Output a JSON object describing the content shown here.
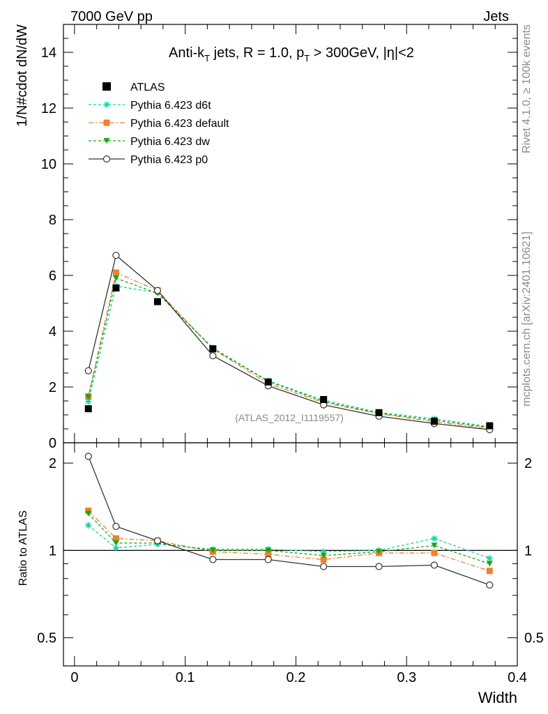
{
  "header": {
    "left": "7000 GeV pp",
    "right": "Jets"
  },
  "side_labels": {
    "rivet": "Rivet 4.1.0, ≥ 100k events",
    "mcplots": "mcplots.cern.ch [arXiv:2401.10621]"
  },
  "chart_data": {
    "type": "line",
    "title": {
      "prefix": "Anti-k",
      "sub1": "T",
      "mid": " jets, R = 1.0, p",
      "sub2": "T",
      "suffix": " > 300GeV, |η|<2"
    },
    "ylabel": "1/N#cdot dN/dW",
    "ratio_ylabel": "Ratio to ATLAS",
    "xlabel": "Width",
    "analysis_tag": "(ATLAS_2012_I1119557)",
    "xlim": [
      -0.01,
      0.4
    ],
    "ylim": [
      0,
      15
    ],
    "ratio_ylim": [
      0.4,
      2.35
    ],
    "x_ticks": [
      "0",
      "0.1",
      "0.2",
      "0.3",
      "0.4"
    ],
    "y_ticks": [
      "0",
      "2",
      "4",
      "6",
      "8",
      "10",
      "12",
      "14"
    ],
    "ratio_ticks": [
      "0.5",
      "1",
      "2"
    ],
    "x": [
      0.0125,
      0.0375,
      0.075,
      0.125,
      0.175,
      0.225,
      0.275,
      0.325,
      0.375
    ],
    "data": {
      "name": "ATLAS",
      "values": [
        1.22,
        5.55,
        5.06,
        3.37,
        2.18,
        1.55,
        1.08,
        0.77,
        0.61
      ]
    },
    "series": [
      {
        "name": "Pythia 6.423 d6t",
        "color": "#19d3a6",
        "marker": "star",
        "dash": "4,3",
        "values": [
          1.48,
          5.62,
          5.38,
          3.4,
          2.22,
          1.53,
          1.09,
          0.86,
          0.58
        ],
        "ratio": [
          1.22,
          1.02,
          1.05,
          1.01,
          1.01,
          0.99,
          1.0,
          1.1,
          0.94
        ]
      },
      {
        "name": "Pythia 6.423 default",
        "color": "#f07f2e",
        "marker": "square",
        "dash": "7,3,2,3",
        "values": [
          1.66,
          6.1,
          5.46,
          3.36,
          2.12,
          1.44,
          1.04,
          0.75,
          0.52
        ],
        "ratio": [
          1.37,
          1.1,
          1.08,
          0.99,
          0.97,
          0.93,
          0.98,
          0.98,
          0.85
        ]
      },
      {
        "name": "Pythia 6.423 dw",
        "color": "#13a813",
        "marker": "triangle-down",
        "dash": "4,3",
        "values": [
          1.64,
          5.9,
          5.36,
          3.38,
          2.2,
          1.48,
          1.06,
          0.81,
          0.55
        ],
        "ratio": [
          1.34,
          1.06,
          1.06,
          1.0,
          1.0,
          0.96,
          0.99,
          1.04,
          0.9
        ]
      },
      {
        "name": "Pythia 6.423 p0",
        "color": "#333333",
        "marker": "circle-open",
        "dash": "",
        "values": [
          2.58,
          6.72,
          5.46,
          3.12,
          2.04,
          1.36,
          0.95,
          0.69,
          0.47
        ],
        "ratio": [
          2.11,
          1.21,
          1.08,
          0.93,
          0.93,
          0.88,
          0.88,
          0.89,
          0.76
        ]
      }
    ]
  }
}
